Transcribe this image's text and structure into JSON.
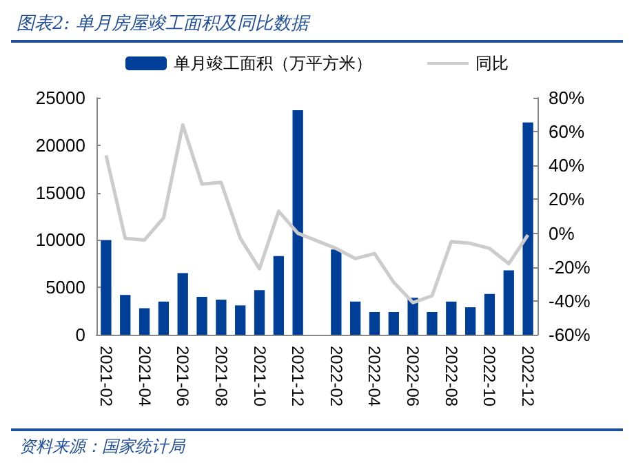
{
  "chart_data": {
    "type": "bar",
    "title": "图表2:  单月房屋竣工面积及同比数据",
    "annotations": [
      "资料来源：国家统计局"
    ],
    "categories": [
      "2021-02",
      null,
      "2021-04",
      null,
      "2021-06",
      null,
      "2021-08",
      null,
      "2021-10",
      null,
      "2021-12",
      null,
      "2022-02",
      null,
      "2022-04",
      null,
      "2022-06",
      null,
      "2022-08",
      null,
      "2022-10",
      null,
      "2022-12"
    ],
    "series": [
      {
        "name": "单月竣工面积（万平方米）",
        "color": "#003f98",
        "values": [
          10000,
          4200,
          2800,
          3500,
          6500,
          4000,
          3700,
          3100,
          4700,
          8300,
          23700,
          null,
          9000,
          3500,
          2400,
          2400,
          3900,
          2400,
          3500,
          2900,
          4300,
          6800,
          22400
        ]
      },
      {
        "name": "同比",
        "type": "line",
        "axis": "y2",
        "color": "#cccccc",
        "values": [
          46,
          -3,
          -4,
          9,
          64,
          29,
          30,
          -3,
          -21,
          13,
          0,
          null,
          -9,
          -15,
          -12,
          -29,
          -41,
          -37,
          -5,
          -6,
          -9,
          -18,
          -1
        ]
      }
    ],
    "ylim": [
      0,
      25000
    ],
    "yticks": [
      0,
      5000,
      10000,
      15000,
      20000,
      25000
    ],
    "y2lim": [
      -60,
      80
    ],
    "y2ticks": [
      {
        "value": -60,
        "label": "-60%"
      },
      {
        "value": -40,
        "label": "-40%"
      },
      {
        "value": -20,
        "label": "-20%"
      },
      {
        "value": 0,
        "label": "0%"
      },
      {
        "value": 20,
        "label": "20%"
      },
      {
        "value": 40,
        "label": "40%"
      },
      {
        "value": 60,
        "label": "60%"
      },
      {
        "value": 80,
        "label": "80%"
      }
    ],
    "legend": "top",
    "grid": false,
    "marker": "none"
  }
}
